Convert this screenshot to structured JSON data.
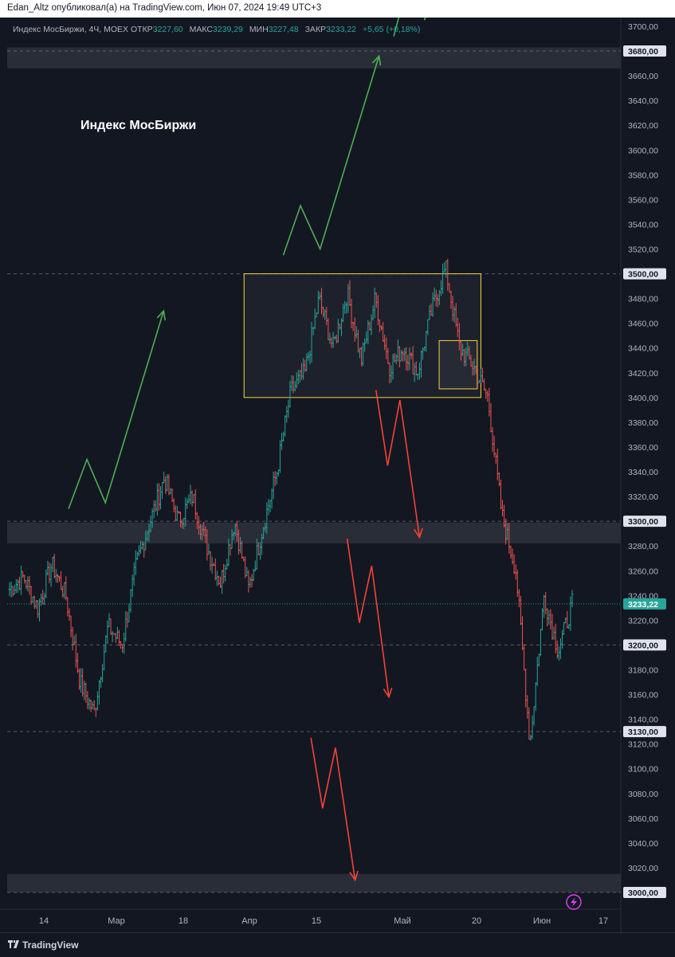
{
  "header": {
    "publisher_line": "Edan_Altz опубликовал(а) на TradingView.com, Июн 07, 2024 19:49 UTC+3"
  },
  "legend": {
    "symbol": "Индекс МосБиржи, 4Ч, MOEX",
    "open_label": "ОТКР",
    "open": "3227,60",
    "high_label": "МАКС",
    "high": "3239,29",
    "low_label": "МИН",
    "low": "3227,48",
    "close_label": "ЗАКР",
    "close": "3233,22",
    "change": "+5,65 (+0,18%)"
  },
  "footer": {
    "brand": "TradingView"
  },
  "colors": {
    "up": "#26a69a",
    "down": "#ef5350",
    "box": "#f5d33b",
    "arrow_up": "#4caf50",
    "arrow_down": "#f44336",
    "text": "#b2b5be"
  },
  "chart_data": {
    "type": "ohlc",
    "title": "Индекс МосБиржи",
    "ylim": [
      2960,
      3710
    ],
    "y_ticks": [
      "3700,00",
      "3680,00",
      "3660,00",
      "3640,00",
      "3620,00",
      "3600,00",
      "3580,00",
      "3560,00",
      "3540,00",
      "3520,00",
      "3500,00",
      "3480,00",
      "3460,00",
      "3440,00",
      "3420,00",
      "3400,00",
      "3380,00",
      "3360,00",
      "3340,00",
      "3320,00",
      "3300,00",
      "3280,00",
      "3260,00",
      "3240,00",
      "3233,22",
      "3220,00",
      "3200,00",
      "3180,00",
      "3160,00",
      "3140,00",
      "3130,00",
      "3120,00",
      "3100,00",
      "3080,00",
      "3060,00",
      "3040,00",
      "3020,00",
      "3000,00"
    ],
    "highlighted_levels": [
      "3680,00",
      "3500,00",
      "3300,00",
      "3233,22",
      "3200,00",
      "3130,00",
      "3000,00"
    ],
    "x_ticks": [
      "14",
      "Мар",
      "18",
      "Апр",
      "15",
      "Май",
      "20",
      "Июн",
      "17"
    ],
    "price_path": [
      3245,
      3255,
      3230,
      3265,
      3240,
      3170,
      3145,
      3215,
      3200,
      3265,
      3300,
      3335,
      3300,
      3320,
      3280,
      3250,
      3300,
      3245,
      3295,
      3340,
      3405,
      3420,
      3480,
      3440,
      3485,
      3430,
      3480,
      3425,
      3440,
      3420,
      3470,
      3505,
      3440,
      3425,
      3400,
      3305,
      3260,
      3120,
      3240,
      3195,
      3233
    ],
    "zones": [
      {
        "from": 3666,
        "to": 3683
      },
      {
        "from": 3282,
        "to": 3299
      },
      {
        "from": 3000,
        "to": 3015
      }
    ],
    "boxes": [
      {
        "x_from": 0.386,
        "x_to": 0.772,
        "from": 3400,
        "to": 3500
      },
      {
        "x_from": 0.704,
        "x_to": 0.766,
        "from": 3407,
        "to": 3446
      }
    ],
    "arrows": [
      {
        "direction": "up",
        "points": [
          [
            0.1,
            3310
          ],
          [
            0.13,
            3350
          ],
          [
            0.16,
            3315
          ],
          [
            0.255,
            3470
          ]
        ]
      },
      {
        "direction": "up",
        "points": [
          [
            0.45,
            3515
          ],
          [
            0.478,
            3555
          ],
          [
            0.51,
            3520
          ],
          [
            0.606,
            3676
          ]
        ]
      },
      {
        "direction": "up",
        "points": [
          [
            0.63,
            3692
          ],
          [
            0.645,
            3720
          ]
        ]
      },
      {
        "direction": "up",
        "points": [
          [
            0.68,
            3705
          ],
          [
            0.69,
            3720
          ]
        ]
      },
      {
        "direction": "down",
        "points": [
          [
            0.601,
            3406
          ],
          [
            0.62,
            3345
          ],
          [
            0.64,
            3398
          ],
          [
            0.672,
            3287
          ]
        ]
      },
      {
        "direction": "down",
        "points": [
          [
            0.554,
            3286
          ],
          [
            0.574,
            3218
          ],
          [
            0.594,
            3264
          ],
          [
            0.622,
            3158
          ]
        ]
      },
      {
        "direction": "down",
        "points": [
          [
            0.495,
            3125
          ],
          [
            0.514,
            3068
          ],
          [
            0.535,
            3117
          ],
          [
            0.567,
            3010
          ]
        ]
      }
    ]
  }
}
